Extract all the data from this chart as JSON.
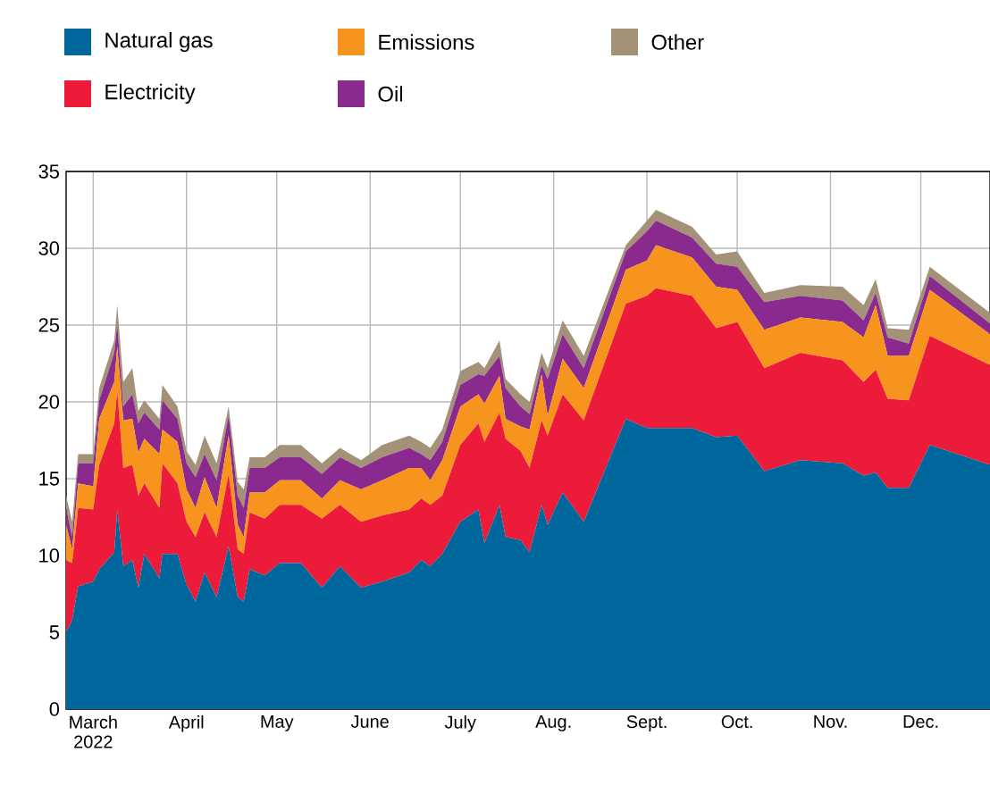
{
  "chart_data": {
    "type": "area",
    "stacked": true,
    "grid": true,
    "legend": "top",
    "x": [
      "2022-02-20",
      "2022-02-22",
      "2022-02-24",
      "2022-03-01",
      "2022-03-03",
      "2022-03-08",
      "2022-03-09",
      "2022-03-11",
      "2022-03-14",
      "2022-03-16",
      "2022-03-18",
      "2022-03-23",
      "2022-03-24",
      "2022-03-29",
      "2022-04-01",
      "2022-04-04",
      "2022-04-07",
      "2022-04-11",
      "2022-04-15",
      "2022-04-18",
      "2022-04-20",
      "2022-04-22",
      "2022-04-27",
      "2022-05-02",
      "2022-05-09",
      "2022-05-16",
      "2022-05-22",
      "2022-05-29",
      "2022-06-05",
      "2022-06-14",
      "2022-06-18",
      "2022-06-21",
      "2022-06-25",
      "2022-07-01",
      "2022-07-07",
      "2022-07-09",
      "2022-07-14",
      "2022-07-16",
      "2022-07-21",
      "2022-07-24",
      "2022-07-28",
      "2022-07-30",
      "2022-08-04",
      "2022-08-11",
      "2022-08-25",
      "2022-09-01",
      "2022-09-04",
      "2022-09-16",
      "2022-09-24",
      "2022-10-01",
      "2022-10-10",
      "2022-10-22",
      "2022-11-05",
      "2022-11-12",
      "2022-11-16",
      "2022-11-20",
      "2022-11-27",
      "2022-12-04",
      "2022-12-24"
    ],
    "series": [
      {
        "name": "Natural gas",
        "color": "#00679c",
        "values": [
          5.0,
          5.8,
          8.0,
          8.3,
          9.1,
          10.2,
          13.0,
          9.3,
          9.7,
          7.9,
          10.1,
          8.5,
          10.1,
          10.1,
          8.1,
          7.0,
          8.9,
          7.3,
          10.6,
          7.3,
          7.0,
          9.1,
          8.7,
          9.5,
          9.5,
          7.9,
          9.3,
          7.9,
          8.3,
          8.9,
          9.7,
          9.3,
          10.1,
          12.2,
          13.0,
          10.8,
          13.3,
          11.2,
          11.0,
          10.2,
          13.3,
          12.0,
          14.1,
          12.2,
          18.9,
          18.3,
          18.3,
          18.3,
          17.7,
          17.8,
          15.5,
          16.2,
          16.0,
          15.2,
          15.4,
          14.4,
          14.4,
          17.2,
          15.9
        ]
      },
      {
        "name": "Electricity",
        "color": "#ed1b3a",
        "values": [
          4.7,
          3.7,
          5.1,
          4.7,
          6.8,
          8.4,
          7.7,
          6.4,
          6.2,
          6.0,
          4.6,
          4.6,
          5.9,
          4.6,
          4.1,
          4.2,
          3.9,
          3.9,
          4.7,
          3.1,
          3.1,
          3.7,
          3.7,
          3.8,
          3.8,
          4.5,
          4.0,
          4.3,
          4.3,
          4.1,
          4.0,
          4.0,
          3.8,
          5.0,
          5.6,
          6.6,
          6.0,
          6.4,
          5.8,
          5.5,
          5.5,
          5.8,
          6.4,
          6.6,
          7.5,
          8.6,
          9.1,
          8.6,
          7.1,
          7.4,
          6.7,
          7.0,
          6.7,
          6.1,
          6.7,
          5.8,
          5.7,
          7.1,
          6.5
        ]
      },
      {
        "name": "Emissions",
        "color": "#f7941d",
        "values": [
          2.3,
          0.9,
          1.6,
          1.5,
          3.0,
          2.7,
          2.9,
          3.1,
          3.0,
          2.8,
          2.9,
          3.5,
          2.2,
          2.7,
          2.1,
          1.9,
          2.3,
          1.9,
          2.5,
          1.6,
          1.1,
          1.3,
          1.7,
          1.6,
          1.6,
          1.3,
          1.6,
          2.1,
          2.3,
          2.7,
          2.0,
          1.6,
          2.3,
          2.5,
          1.9,
          2.5,
          2.4,
          1.3,
          1.6,
          2.5,
          3.0,
          1.3,
          2.3,
          2.1,
          2.2,
          2.3,
          2.8,
          2.5,
          2.7,
          2.1,
          2.5,
          2.3,
          2.5,
          2.9,
          4.2,
          2.8,
          2.9,
          3.0,
          2.0
        ]
      },
      {
        "name": "Oil",
        "color": "#8b2a8e",
        "values": [
          1.1,
          0.8,
          1.3,
          1.5,
          1.2,
          1.9,
          1.5,
          0.9,
          1.6,
          1.9,
          1.7,
          1.6,
          1.9,
          1.5,
          1.7,
          2.0,
          1.5,
          1.8,
          1.3,
          1.9,
          1.9,
          1.6,
          1.6,
          1.5,
          1.5,
          1.6,
          1.5,
          1.4,
          1.5,
          1.3,
          0.9,
          1.3,
          1.2,
          1.4,
          1.3,
          1.8,
          1.3,
          2.0,
          1.3,
          1.0,
          0.6,
          2.4,
          1.6,
          1.3,
          1.2,
          1.9,
          1.6,
          1.3,
          1.5,
          1.5,
          1.8,
          1.4,
          1.4,
          1.1,
          0.8,
          1.2,
          0.8,
          0.9,
          0.7
        ]
      },
      {
        "name": "Other",
        "color": "#a39278",
        "values": [
          0.8,
          1.0,
          0.6,
          0.6,
          0.8,
          0.8,
          1.2,
          1.6,
          1.7,
          0.8,
          0.8,
          0.7,
          1.0,
          0.8,
          0.8,
          0.8,
          1.2,
          1.1,
          0.6,
          0.9,
          1.2,
          0.7,
          0.7,
          0.8,
          0.8,
          0.7,
          0.6,
          0.5,
          0.8,
          0.8,
          0.8,
          0.8,
          0.8,
          0.9,
          0.8,
          0.5,
          1.0,
          0.6,
          0.8,
          0.8,
          0.8,
          0.7,
          0.9,
          0.8,
          0.4,
          0.7,
          0.7,
          0.7,
          0.6,
          1.0,
          0.6,
          0.7,
          0.9,
          1.0,
          0.9,
          0.6,
          0.9,
          0.6,
          0.7
        ]
      }
    ],
    "xlim": [
      "2022-02-20",
      "2022-12-24"
    ],
    "xticks": [
      {
        "value": "2022-03-01",
        "label": "March 2022"
      },
      {
        "value": "2022-04-01",
        "label": "April"
      },
      {
        "value": "2022-05-01",
        "label": "May"
      },
      {
        "value": "2022-06-01",
        "label": "June"
      },
      {
        "value": "2022-07-01",
        "label": "July"
      },
      {
        "value": "2022-08-01",
        "label": "Aug."
      },
      {
        "value": "2022-09-01",
        "label": "Sept."
      },
      {
        "value": "2022-10-01",
        "label": "Oct."
      },
      {
        "value": "2022-11-01",
        "label": "Nov."
      },
      {
        "value": "2022-12-01",
        "label": "Dec."
      }
    ],
    "ylim": [
      0,
      35
    ],
    "yticks": [
      0,
      5,
      10,
      15,
      20,
      25,
      30,
      35
    ]
  }
}
